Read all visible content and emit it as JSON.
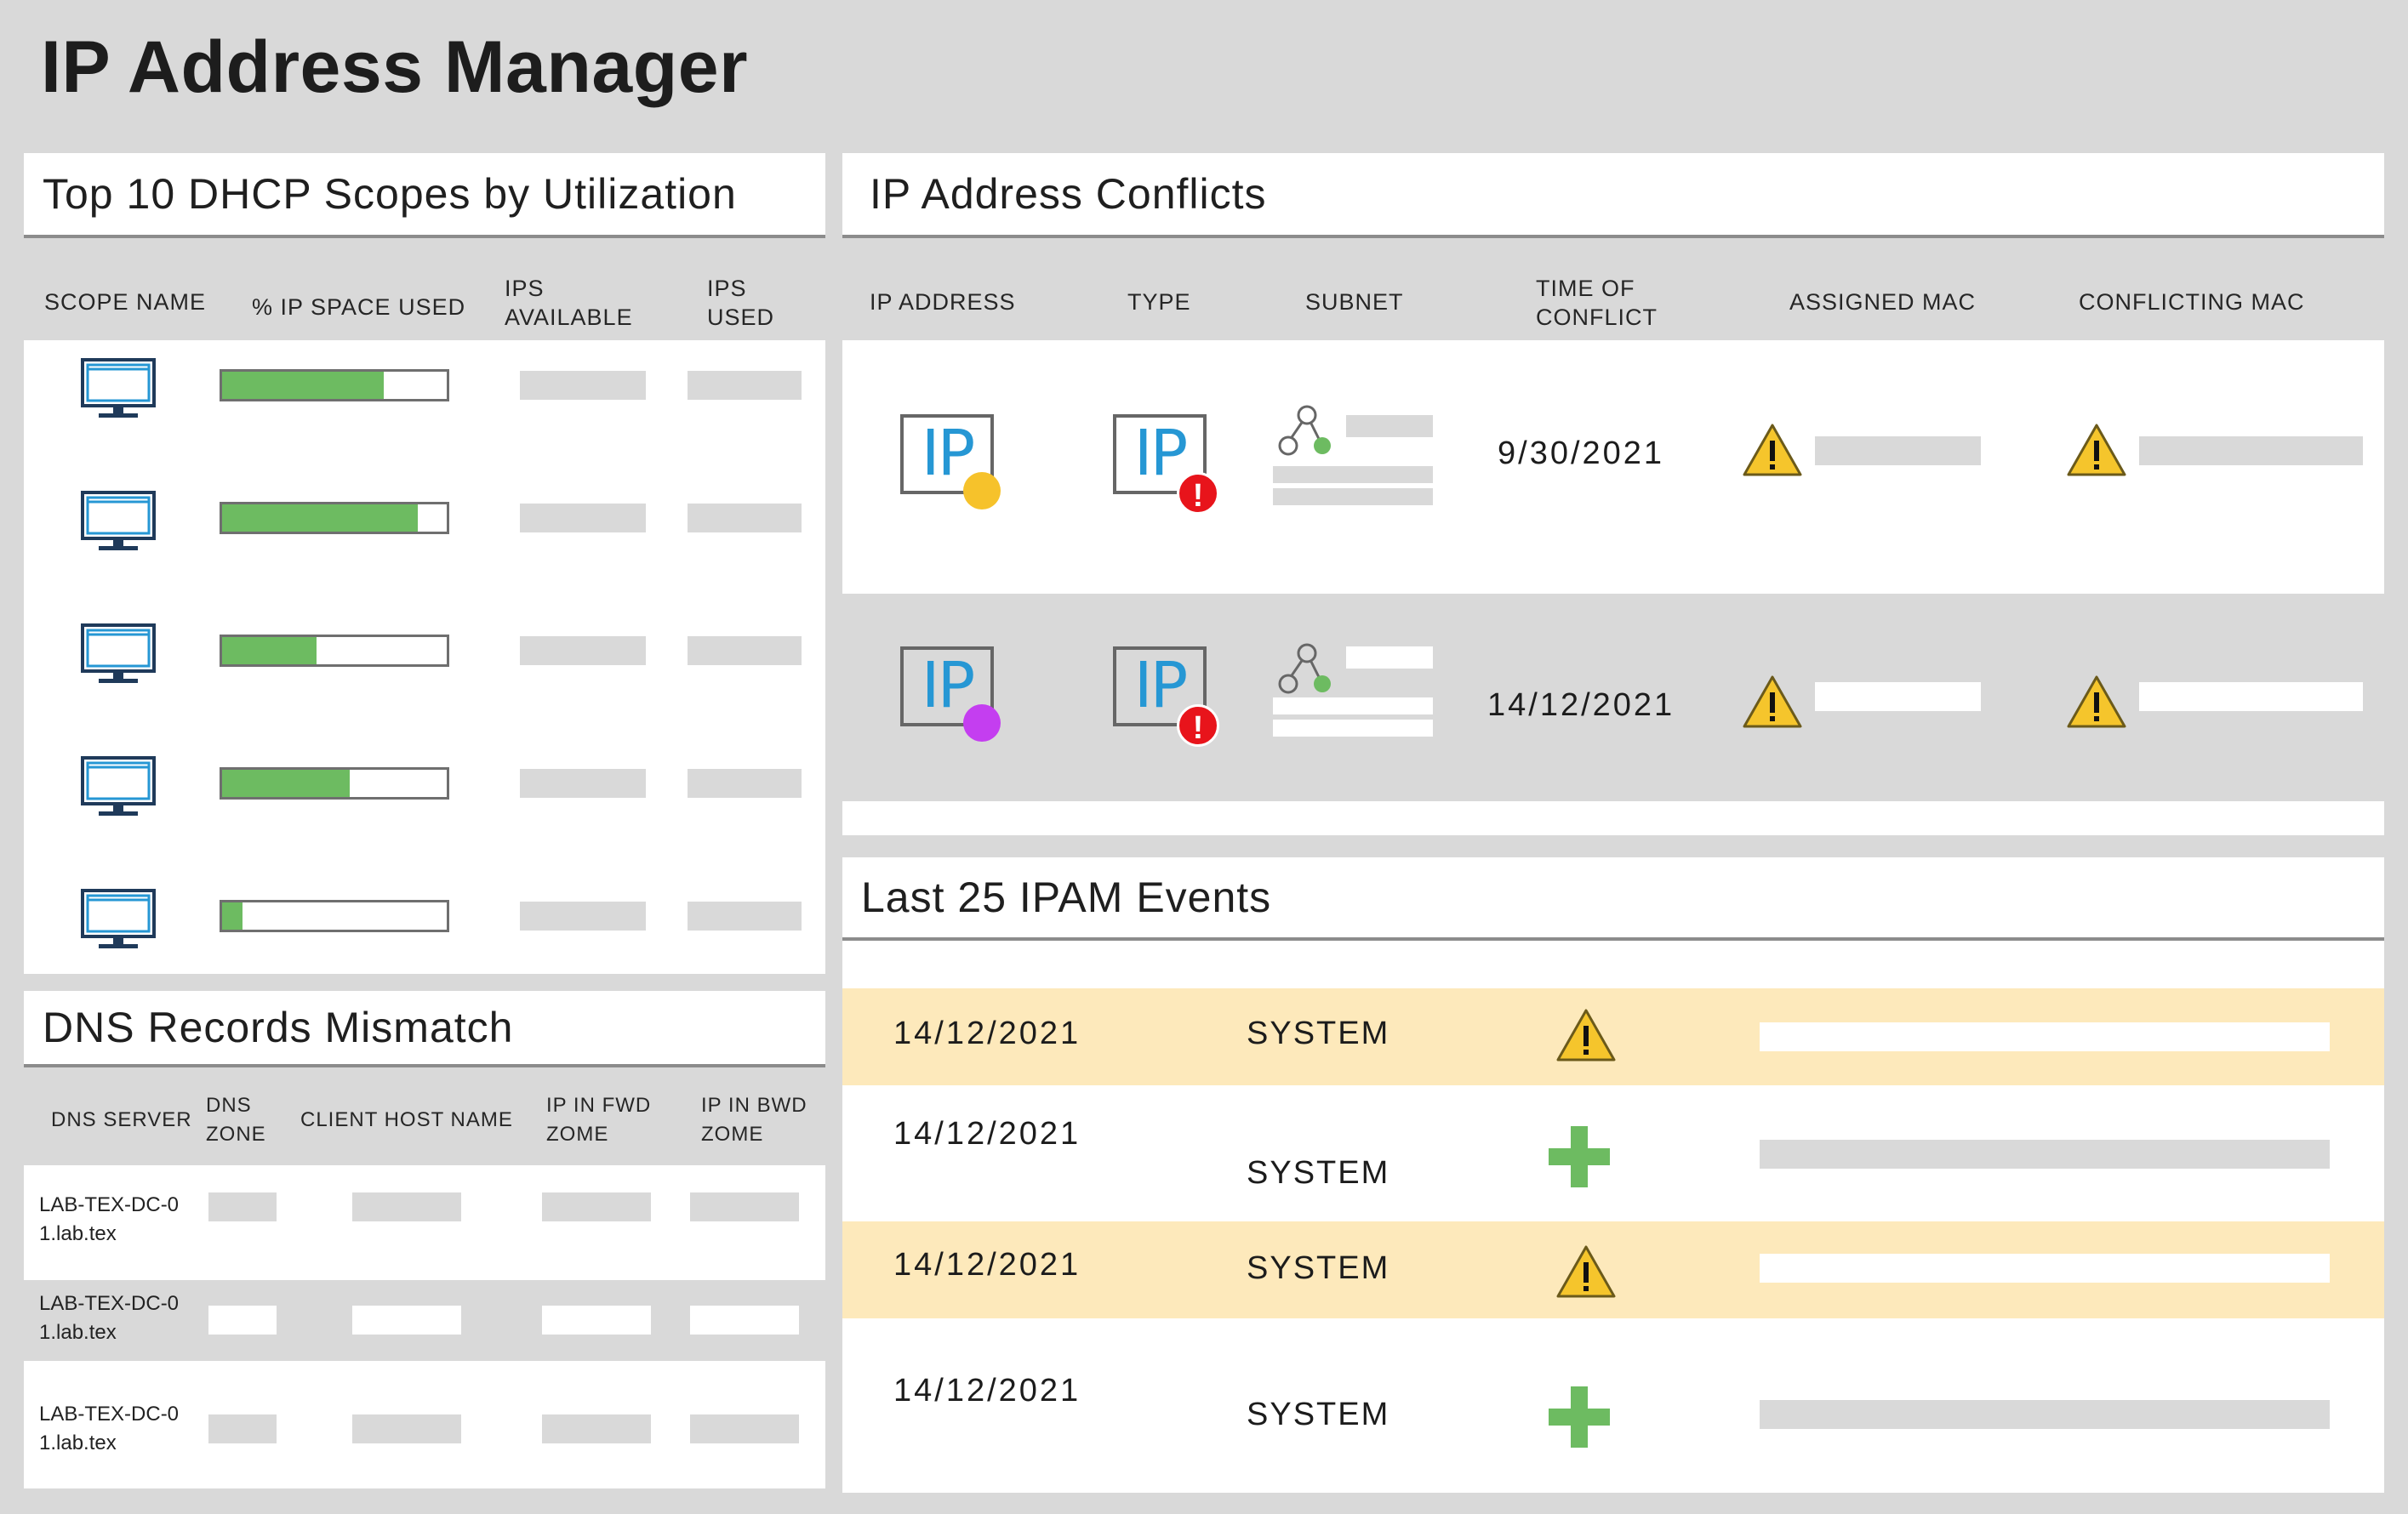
{
  "app": {
    "title": "IP Address Manager"
  },
  "colors": {
    "bar_fill": "#6dbb61",
    "highlight_row": "#fde9bb",
    "warn_yellow": "#f5c52c",
    "error_red": "#e8141b",
    "ip_blue": "#2697d4",
    "dot_yellow": "#f6c22b",
    "dot_purple": "#c43ef0"
  },
  "dhcp": {
    "title": "Top 10 DHCP Scopes by Utilization",
    "columns": {
      "scope_name": "SCOPE NAME",
      "ip_space_used": "% IP SPACE USED",
      "ips_available_1": "IPS",
      "ips_available_2": "AVAILABLE",
      "ips_used_1": "IPS",
      "ips_used_2": "USED"
    },
    "rows": [
      {
        "icon": "monitor-icon",
        "used_fraction": 0.72
      },
      {
        "icon": "monitor-icon",
        "used_fraction": 0.87
      },
      {
        "icon": "monitor-icon",
        "used_fraction": 0.42
      },
      {
        "icon": "monitor-icon",
        "used_fraction": 0.57
      },
      {
        "icon": "monitor-icon",
        "used_fraction": 0.09
      }
    ]
  },
  "dns": {
    "title": "DNS Records Mismatch",
    "columns": {
      "server": "DNS SERVER",
      "zone_1": "DNS",
      "zone_2": "ZONE",
      "client": "CLIENT HOST NAME",
      "fwd_1": "IP IN FWD",
      "fwd_2": "ZOME",
      "bwd_1": "IP IN BWD",
      "bwd_2": "ZOME"
    },
    "rows": [
      {
        "server_1": "LAB-TEX-DC-0",
        "server_2": "1.lab.tex"
      },
      {
        "server_1": "LAB-TEX-DC-0",
        "server_2": "1.lab.tex"
      },
      {
        "server_1": "LAB-TEX-DC-0",
        "server_2": "1.lab.tex"
      }
    ]
  },
  "conflicts": {
    "title": "IP Address Conflicts",
    "columns": {
      "ip": "IP ADDRESS",
      "type": "TYPE",
      "subnet": "SUBNET",
      "time_1": "TIME OF",
      "time_2": "CONFLICT",
      "assigned": "ASSIGNED MAC",
      "conflicting": "CONFLICTING MAC"
    },
    "rows": [
      {
        "ip_label": "IP",
        "type_label": "IP",
        "date": "9/30/2021",
        "status_dot": "yellow",
        "type_icon": "error-icon"
      },
      {
        "ip_label": "IP",
        "type_label": "IP",
        "date": "14/12/2021",
        "status_dot": "purple",
        "type_icon": "error-icon"
      }
    ]
  },
  "events": {
    "title": "Last 25 IPAM Events",
    "rows": [
      {
        "date": "14/12/2021",
        "source": "SYSTEM",
        "icon": "warning-icon",
        "highlight": true
      },
      {
        "date": "14/12/2021",
        "source": "SYSTEM",
        "icon": "plus-icon",
        "highlight": false
      },
      {
        "date": "14/12/2021",
        "source": "SYSTEM",
        "icon": "warning-icon",
        "highlight": true
      },
      {
        "date": "14/12/2021",
        "source": "SYSTEM",
        "icon": "plus-icon",
        "highlight": false
      }
    ]
  }
}
